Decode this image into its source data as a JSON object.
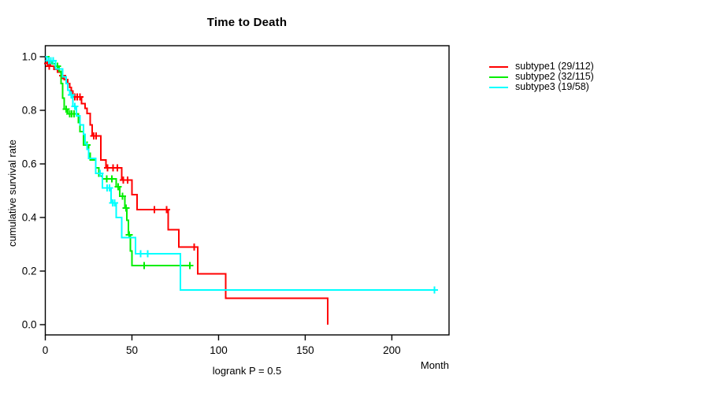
{
  "title": "Time to Death",
  "y_axis": {
    "label": "cumulative survival rate",
    "ticks": [
      "0.0",
      "0.2",
      "0.4",
      "0.6",
      "0.8",
      "1.0"
    ]
  },
  "x_axis": {
    "label": "Month",
    "ticks": [
      "0",
      "50",
      "100",
      "150",
      "200"
    ]
  },
  "footer": "logrank P = 0.5",
  "chart_data": {
    "type": "line",
    "variant": "kaplan-meier-step",
    "title": "Time to Death",
    "xlabel": "Month",
    "ylabel": "cumulative survival rate",
    "annotation": "logrank P = 0.5",
    "xlim": [
      0,
      233
    ],
    "ylim": [
      0,
      1
    ],
    "grid": false,
    "legend_position": "right-outside",
    "series": [
      {
        "name": "subtype1",
        "label": "subtype1 (29/112)",
        "events": "29/112",
        "color": "#ff0000",
        "points": [
          [
            0,
            1.0
          ],
          [
            1,
            0.975
          ],
          [
            3,
            0.964
          ],
          [
            5,
            0.953
          ],
          [
            7,
            0.942
          ],
          [
            9,
            0.93
          ],
          [
            11,
            0.915
          ],
          [
            13,
            0.9
          ],
          [
            14,
            0.885
          ],
          [
            15,
            0.872
          ],
          [
            16,
            0.85
          ],
          [
            21,
            0.825
          ],
          [
            23,
            0.808
          ],
          [
            24,
            0.788
          ],
          [
            26,
            0.745
          ],
          [
            27,
            0.705
          ],
          [
            32,
            0.615
          ],
          [
            35,
            0.585
          ],
          [
            44,
            0.54
          ],
          [
            50,
            0.485
          ],
          [
            53,
            0.43
          ],
          [
            71,
            0.355
          ],
          [
            77,
            0.29
          ],
          [
            88,
            0.19
          ],
          [
            104,
            0.098
          ],
          [
            163,
            0
          ]
        ],
        "censors": [
          [
            1.3,
            0.975
          ],
          [
            2.2,
            0.964
          ],
          [
            10,
            0.93
          ],
          [
            17,
            0.85
          ],
          [
            18.5,
            0.85
          ],
          [
            20,
            0.85
          ],
          [
            28,
            0.705
          ],
          [
            29.3,
            0.705
          ],
          [
            36,
            0.585
          ],
          [
            39,
            0.585
          ],
          [
            41.5,
            0.585
          ],
          [
            45,
            0.54
          ],
          [
            47.5,
            0.54
          ],
          [
            63,
            0.43
          ],
          [
            70,
            0.43
          ],
          [
            86,
            0.29
          ]
        ]
      },
      {
        "name": "subtype2",
        "label": "subtype2 (32/115)",
        "events": "32/115",
        "color": "#00ee00",
        "points": [
          [
            0,
            1.0
          ],
          [
            2,
            0.983
          ],
          [
            4,
            0.974
          ],
          [
            6,
            0.965
          ],
          [
            8,
            0.945
          ],
          [
            9,
            0.9
          ],
          [
            10,
            0.845
          ],
          [
            11,
            0.805
          ],
          [
            13,
            0.787
          ],
          [
            19,
            0.755
          ],
          [
            20,
            0.72
          ],
          [
            22,
            0.67
          ],
          [
            25,
            0.64
          ],
          [
            26,
            0.615
          ],
          [
            29,
            0.585
          ],
          [
            31,
            0.555
          ],
          [
            33,
            0.544
          ],
          [
            41,
            0.515
          ],
          [
            43,
            0.48
          ],
          [
            46,
            0.435
          ],
          [
            47,
            0.39
          ],
          [
            48,
            0.335
          ],
          [
            49,
            0.275
          ],
          [
            50,
            0.22
          ],
          [
            85,
            0.22
          ]
        ],
        "censors": [
          [
            7,
            0.965
          ],
          [
            12,
            0.805
          ],
          [
            14,
            0.787
          ],
          [
            15.2,
            0.787
          ],
          [
            16.5,
            0.787
          ],
          [
            24,
            0.67
          ],
          [
            35.5,
            0.544
          ],
          [
            38.5,
            0.544
          ],
          [
            42,
            0.515
          ],
          [
            44.5,
            0.48
          ],
          [
            46.5,
            0.435
          ],
          [
            48.4,
            0.335
          ],
          [
            57,
            0.22
          ],
          [
            83.5,
            0.22
          ]
        ]
      },
      {
        "name": "subtype3",
        "label": "subtype3 (19/58)",
        "events": "19/58",
        "color": "#00ffff",
        "points": [
          [
            0,
            1.0
          ],
          [
            1,
            0.985
          ],
          [
            6,
            0.955
          ],
          [
            10,
            0.925
          ],
          [
            12,
            0.9
          ],
          [
            13,
            0.875
          ],
          [
            14,
            0.858
          ],
          [
            16,
            0.815
          ],
          [
            18,
            0.78
          ],
          [
            20,
            0.745
          ],
          [
            22,
            0.71
          ],
          [
            23,
            0.675
          ],
          [
            24,
            0.655
          ],
          [
            25,
            0.62
          ],
          [
            29,
            0.565
          ],
          [
            33,
            0.51
          ],
          [
            38,
            0.455
          ],
          [
            41,
            0.4
          ],
          [
            44,
            0.325
          ],
          [
            52,
            0.265
          ],
          [
            78,
            0.13
          ],
          [
            225,
            0.13
          ]
        ],
        "censors": [
          [
            2,
            0.985
          ],
          [
            3.2,
            0.985
          ],
          [
            4.5,
            0.985
          ],
          [
            15,
            0.858
          ],
          [
            17,
            0.815
          ],
          [
            31.5,
            0.565
          ],
          [
            35.8,
            0.51
          ],
          [
            37,
            0.51
          ],
          [
            38.8,
            0.455
          ],
          [
            39.9,
            0.455
          ],
          [
            55,
            0.265
          ],
          [
            59,
            0.265
          ],
          [
            224.5,
            0.13
          ]
        ]
      }
    ]
  }
}
